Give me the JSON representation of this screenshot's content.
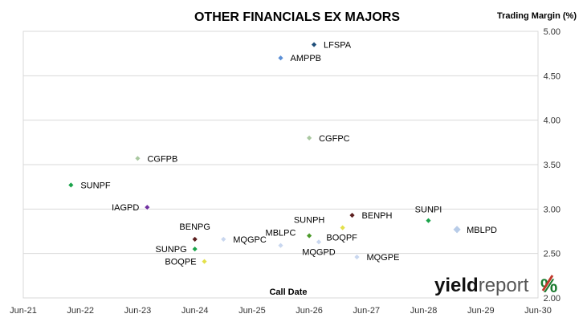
{
  "chart_data": {
    "type": "scatter",
    "title": "OTHER FINANCIALS EX MAJORS",
    "ylabel": "Trading Margin (%)",
    "xlabel": "Call Date",
    "ylim": [
      2.0,
      5.0
    ],
    "xlim": [
      "Jun-21",
      "Jun-30"
    ],
    "y_ticks": [
      "2.00",
      "2.50",
      "3.00",
      "3.50",
      "4.00",
      "4.50",
      "5.00"
    ],
    "x_ticks": [
      "Jun-21",
      "Jun-22",
      "Jun-23",
      "Jun-24",
      "Jun-25",
      "Jun-26",
      "Jun-27",
      "Jun-28",
      "Jun-29",
      "Jun-30"
    ],
    "y_axis_position": "right",
    "grid": "horizontal",
    "legend": "none",
    "points": [
      {
        "label": "LFSPA",
        "x": "Jul-26",
        "y": 4.85,
        "color": "#1f4e79"
      },
      {
        "label": "AMPPB",
        "x": "Dec-25",
        "y": 4.7,
        "color": "#5b8fd6"
      },
      {
        "label": "CGFPC",
        "x": "Jun-26",
        "y": 3.8,
        "color": "#a9c8a0"
      },
      {
        "label": "CGFPB",
        "x": "Jun-23",
        "y": 3.57,
        "color": "#a9c8a0"
      },
      {
        "label": "SUNPF",
        "x": "Apr-22",
        "y": 3.27,
        "color": "#1aa34a"
      },
      {
        "label": "IAGPD",
        "x": "Aug-23",
        "y": 3.02,
        "color": "#7030a0"
      },
      {
        "label": "BENPH",
        "x": "Mar-27",
        "y": 2.93,
        "color": "#5c1f1f"
      },
      {
        "label": "SUNPI",
        "x": "Jul-28",
        "y": 2.87,
        "color": "#1aa34a"
      },
      {
        "label": "BOQPF",
        "x": "Jan-27",
        "y": 2.79,
        "color": "#e3e04a"
      },
      {
        "label": "MBLPD",
        "x": "Jan-29",
        "y": 2.77,
        "color": "#b8cce8"
      },
      {
        "label": "SUNPH",
        "x": "Jun-26",
        "y": 2.7,
        "color": "#4c9a2a"
      },
      {
        "label": "BENPG",
        "x": "Jun-24",
        "y": 2.66,
        "color": "#5c1f1f"
      },
      {
        "label": "MQGPC",
        "x": "Dec-24",
        "y": 2.66,
        "color": "#c9d7ef"
      },
      {
        "label": "MQGPD",
        "x": "Aug-26",
        "y": 2.63,
        "color": "#c9d7ef"
      },
      {
        "label": "MBLPC",
        "x": "Dec-25",
        "y": 2.59,
        "color": "#c9d7ef"
      },
      {
        "label": "SUNPG",
        "x": "Jun-24",
        "y": 2.55,
        "color": "#1aa34a"
      },
      {
        "label": "MQGPE",
        "x": "Apr-27",
        "y": 2.46,
        "color": "#c9d7ef"
      },
      {
        "label": "BOQPE",
        "x": "Aug-24",
        "y": 2.41,
        "color": "#e3e04a"
      }
    ]
  },
  "logo": {
    "part1": "yield",
    "part2": "report",
    "part3": "%"
  }
}
